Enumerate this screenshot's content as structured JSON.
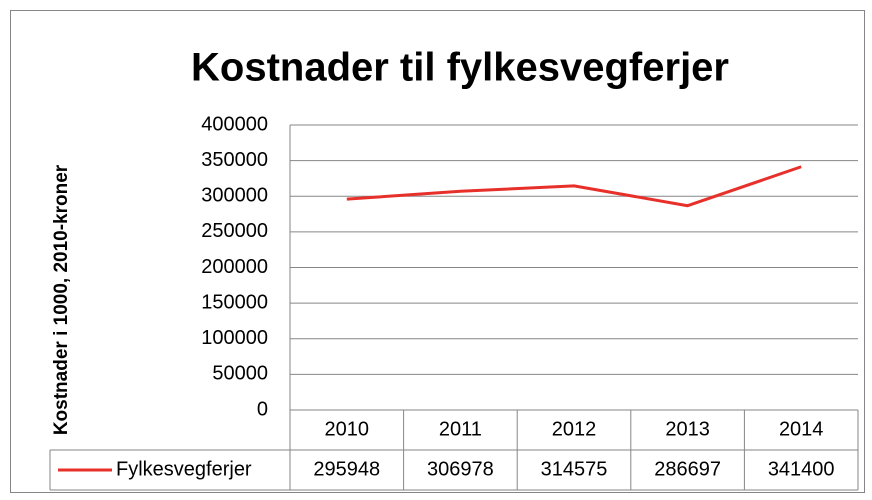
{
  "chart_data": {
    "type": "line",
    "title": "Kostnader til fylkesvegferjer",
    "y_label": "Kostnader i 1000, 2010-kroner",
    "categories": [
      "2010",
      "2011",
      "2012",
      "2013",
      "2014"
    ],
    "series": [
      {
        "name": "Fylkesvegferjer",
        "color": "#e8302a",
        "values": [
          295948,
          306978,
          314575,
          286697,
          341400
        ]
      }
    ],
    "ylim": [
      0,
      400000
    ],
    "yticks": [
      0,
      50000,
      100000,
      150000,
      200000,
      250000,
      300000,
      350000,
      400000
    ],
    "grid": true,
    "data_table": true
  }
}
